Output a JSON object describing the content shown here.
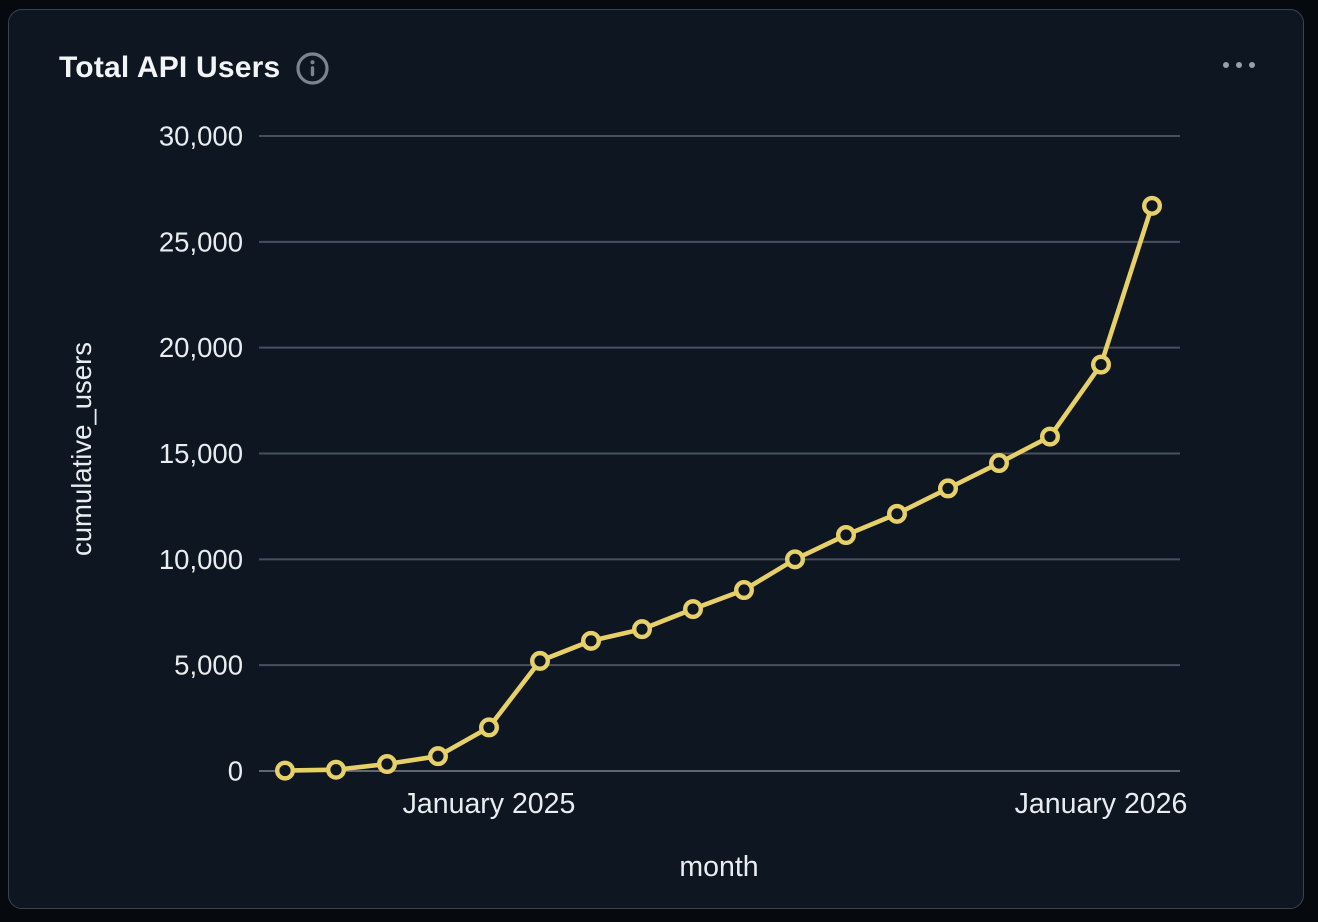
{
  "card": {
    "title": "Total API Users",
    "info_icon": "circled-i",
    "menu_icon": "ellipsis"
  },
  "chart_data": {
    "type": "line",
    "title": "Total API Users",
    "xlabel": "month",
    "ylabel": "cumulative_users",
    "x": [
      "Sep 2024",
      "Oct 2024",
      "Nov 2024",
      "Dec 2024",
      "Jan 2025",
      "Feb 2025",
      "Mar 2025",
      "Apr 2025",
      "May 2025",
      "Jun 2025",
      "Jul 2025",
      "Aug 2025",
      "Sep 2025",
      "Oct 2025",
      "Nov 2025",
      "Dec 2025",
      "Jan 2026",
      "Feb 2026"
    ],
    "series": [
      {
        "name": "cumulative_users",
        "values": [
          20,
          60,
          330,
          700,
          2060,
          5200,
          6150,
          6700,
          7650,
          8550,
          10000,
          11150,
          12150,
          13350,
          14550,
          15800,
          19200,
          26700
        ]
      }
    ],
    "ylim": [
      0,
      30000
    ],
    "grid": true,
    "legend": false,
    "yticks": [
      {
        "value": 0,
        "label": "0"
      },
      {
        "value": 5000,
        "label": "5,000"
      },
      {
        "value": 10000,
        "label": "10,000"
      },
      {
        "value": 15000,
        "label": "15,000"
      },
      {
        "value": 20000,
        "label": "20,000"
      },
      {
        "value": 25000,
        "label": "25,000"
      },
      {
        "value": 30000,
        "label": "30,000"
      }
    ],
    "xticks": [
      {
        "index": 4,
        "label": "January 2025"
      },
      {
        "index": 16,
        "label": "January 2026"
      }
    ],
    "colors": {
      "line": "#e7d068",
      "marker_fill": "#0d1621",
      "grid": "#47515d",
      "zero_line": "#5f6770",
      "text": "#e9edf0",
      "title": "#f2f4f6",
      "muted_icon": "#7c858f",
      "background": "#0d1621",
      "border": "#3a4451"
    }
  }
}
